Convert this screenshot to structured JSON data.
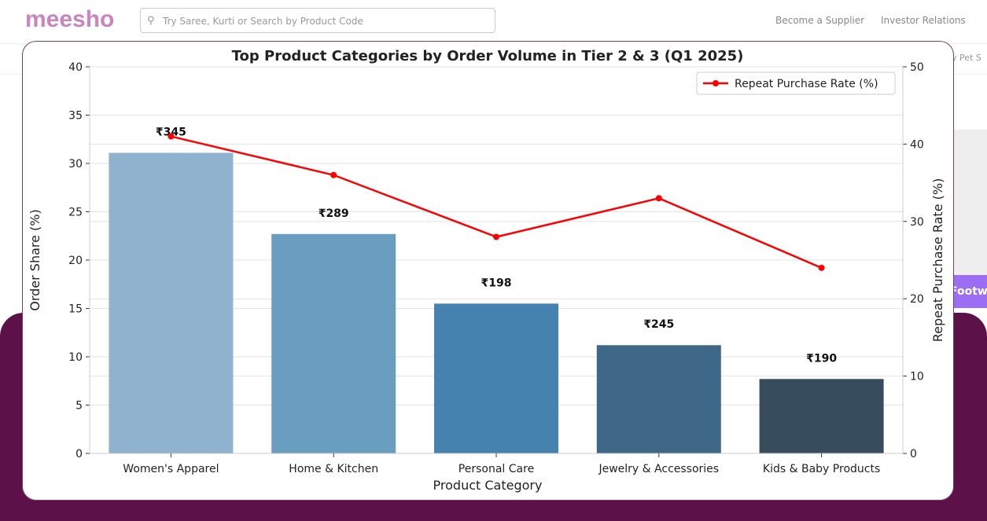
{
  "header": {
    "logo": "meesho",
    "search_placeholder": "Try Saree, Kurti or Search by Product Code",
    "links": [
      "Become a Supplier",
      "Investor Relations"
    ],
    "nav_partial": "y   Pet S",
    "promo_partial": "Footwe"
  },
  "chart_data": {
    "type": "bar+line",
    "title": "Top Product Categories by Order Volume in Tier 2 & 3 (Q1 2025)",
    "xlabel": "Product Category",
    "ylabel": "Order Share (%)",
    "y2label": "Repeat Purchase Rate (%)",
    "ylim": [
      0,
      40
    ],
    "y2lim": [
      0,
      50
    ],
    "yticks": [
      "0",
      "5",
      "10",
      "15",
      "20",
      "25",
      "30",
      "35",
      "40"
    ],
    "y2ticks": [
      "0",
      "10",
      "20",
      "30",
      "40",
      "50"
    ],
    "grid": true,
    "legend_position": "top-right",
    "categories": [
      "Women's Apparel",
      "Home & Kitchen",
      "Personal Care",
      "Jewelry & Accessories",
      "Kids & Baby Products"
    ],
    "bar_values": [
      31.1,
      22.7,
      15.5,
      11.2,
      7.7
    ],
    "bar_labels": [
      "₹345",
      "₹289",
      "₹198",
      "₹245",
      "₹190"
    ],
    "bar_colors": [
      "#8fb3cf",
      "#6a9ec0",
      "#4682b0",
      "#3f6788",
      "#374d5e"
    ],
    "line_series": {
      "name": "Repeat Purchase Rate (%)",
      "values": [
        41,
        36,
        28,
        33,
        24
      ],
      "color": "#ff0000"
    }
  }
}
